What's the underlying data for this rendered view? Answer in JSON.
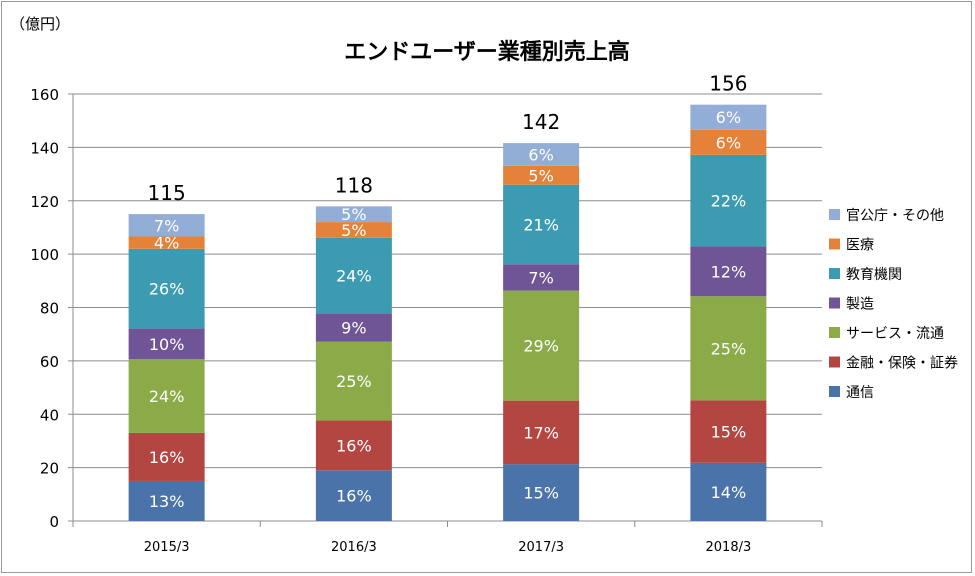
{
  "chart_data": {
    "type": "bar",
    "stacked": true,
    "title": "エンドユーザー業種別売上高",
    "unit_label": "（億円）",
    "categories": [
      "2015/3",
      "2016/3",
      "2017/3",
      "2018/3"
    ],
    "totals": [
      115,
      118,
      142,
      156
    ],
    "ylim": [
      0,
      160
    ],
    "yticks": [
      0,
      20,
      40,
      60,
      80,
      100,
      120,
      140,
      160
    ],
    "grid": true,
    "legend_position": "right",
    "series": [
      {
        "name": "通信",
        "color": "#4a73aa",
        "values": [
          15,
          19,
          21.3,
          21.8
        ],
        "labels": [
          "13%",
          "16%",
          "15%",
          "14%"
        ]
      },
      {
        "name": "金融・保険・証券",
        "color": "#b44642",
        "values": [
          18,
          18.7,
          23.8,
          23.4
        ],
        "labels": [
          "16%",
          "16%",
          "17%",
          "15%"
        ]
      },
      {
        "name": "サービス・流通",
        "color": "#8aab48",
        "values": [
          27.6,
          29.5,
          41.2,
          39
        ],
        "labels": [
          "24%",
          "25%",
          "29%",
          "25%"
        ]
      },
      {
        "name": "製造",
        "color": "#6f5596",
        "values": [
          11.5,
          10.6,
          9.9,
          18.7
        ],
        "labels": [
          "10%",
          "9%",
          "7%",
          "12%"
        ]
      },
      {
        "name": "教育機関",
        "color": "#3c9bb0",
        "values": [
          29.9,
          28.3,
          29.8,
          34.3
        ],
        "labels": [
          "26%",
          "24%",
          "21%",
          "22%"
        ]
      },
      {
        "name": "医療",
        "color": "#e4823a",
        "values": [
          4.6,
          5.9,
          7.1,
          9.4
        ],
        "labels": [
          "4%",
          "5%",
          "5%",
          "6%"
        ]
      },
      {
        "name": "官公庁・その他",
        "color": "#93aed6",
        "values": [
          8.4,
          5.9,
          8.5,
          9.4
        ],
        "labels": [
          "7%",
          "5%",
          "6%",
          "6%"
        ]
      }
    ]
  }
}
